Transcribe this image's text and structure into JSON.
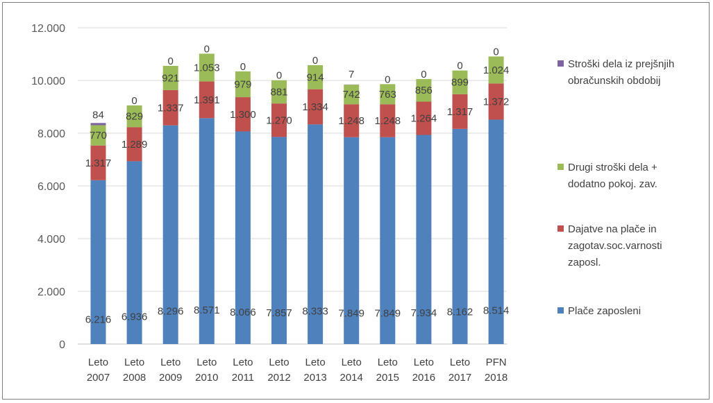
{
  "colors": {
    "place": "#4f81bd",
    "dajatve": "#c0504d",
    "drugi": "#9bbb59",
    "stroski_prej": "#8064a2",
    "grid": "#d9d9d9",
    "text": "#404040"
  },
  "chart_data": {
    "type": "bar",
    "stacked": true,
    "title": "",
    "xlabel": "",
    "ylabel": "",
    "ylim": [
      0,
      12000
    ],
    "yticks": [
      "0",
      "2.000",
      "4.000",
      "6.000",
      "8.000",
      "10.000",
      "12.000"
    ],
    "ytick_values": [
      0,
      2000,
      4000,
      6000,
      8000,
      10000,
      12000
    ],
    "grid": true,
    "legend_position": "right",
    "categories": [
      [
        "Leto",
        "2007"
      ],
      [
        "Leto",
        "2008"
      ],
      [
        "Leto",
        "2009"
      ],
      [
        "Leto",
        "2010"
      ],
      [
        "Leto",
        "2011"
      ],
      [
        "Leto",
        "2012"
      ],
      [
        "Leto",
        "2013"
      ],
      [
        "Leto",
        "2014"
      ],
      [
        "Leto",
        "2015"
      ],
      [
        "Leto",
        "2016"
      ],
      [
        "Leto",
        "2017"
      ],
      [
        "PFN",
        "2018"
      ]
    ],
    "series": [
      {
        "key": "place",
        "legend": [
          "Plače zaposleni"
        ],
        "values": [
          6216,
          6936,
          8296,
          8571,
          8066,
          7857,
          8333,
          7849,
          7849,
          7934,
          8162,
          8514
        ],
        "labels": [
          "6.216",
          "6.936",
          "8.296",
          "8.571",
          "8.066",
          "7.857",
          "8.333",
          "7.849",
          "7.849",
          "7.934",
          "8.162",
          "8.514"
        ]
      },
      {
        "key": "dajatve",
        "legend": [
          "Dajatve na plače in",
          "zagotav.soc.varnosti",
          "zaposl."
        ],
        "values": [
          1317,
          1289,
          1337,
          1391,
          1300,
          1270,
          1334,
          1248,
          1248,
          1264,
          1317,
          1372
        ],
        "labels": [
          "1.317",
          "1.289",
          "1.337",
          "1.391",
          "1.300",
          "1.270",
          "1.334",
          "1.248",
          "1.248",
          "1.264",
          "1.317",
          "1.372"
        ]
      },
      {
        "key": "drugi",
        "legend": [
          "Drugi stroški dela +",
          "dodatno pokoj. zav."
        ],
        "values": [
          770,
          829,
          921,
          1053,
          979,
          881,
          914,
          742,
          763,
          856,
          899,
          1024
        ],
        "labels": [
          "770",
          "829",
          "921",
          "1.053",
          "979",
          "881",
          "914",
          "742",
          "763",
          "856",
          "899",
          "1.024"
        ]
      },
      {
        "key": "stroski_prej",
        "legend": [
          "Stroški dela iz prejšnjih",
          "obračunskih obdobij"
        ],
        "values": [
          84,
          0,
          0,
          0,
          0,
          0,
          0,
          7,
          0,
          0,
          0,
          0
        ],
        "labels": [
          "84",
          "0",
          "0",
          "0",
          "0",
          "0",
          "0",
          "7",
          "0",
          "0",
          "0",
          "0"
        ]
      }
    ],
    "legend_order": [
      "stroski_prej",
      "drugi",
      "dajatve",
      "place"
    ]
  }
}
